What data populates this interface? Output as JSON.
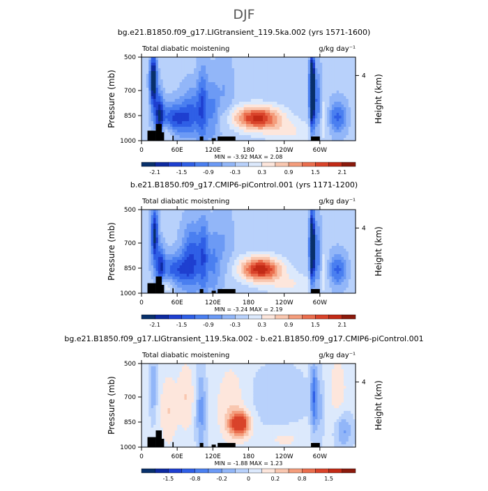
{
  "figure_title": "DJF",
  "chart_data": [
    {
      "type": "heatmap",
      "title": "bg.e21.B1850.f09_g17.LIGtransient_119.5ka.002 (yrs 1571-1600)",
      "left_string": "Total diabatic moistening",
      "units": "g/kg day⁻¹",
      "ylabel": "Pressure (mb)",
      "ylabel_right": "Height (km)",
      "yticks": [
        "500",
        "700",
        "850",
        "1000"
      ],
      "ytick_values": [
        500,
        700,
        850,
        1000
      ],
      "yticks_right": [
        "4"
      ],
      "xticks": [
        "0",
        "60E",
        "120E",
        "180",
        "120W",
        "60W"
      ],
      "xtick_values": [
        0,
        60,
        120,
        180,
        240,
        300
      ],
      "xlim": [
        0,
        360
      ],
      "ylim": [
        1000,
        500
      ],
      "stats": "MIN =    -3.92   MAX =     2.08",
      "min": -3.92,
      "max": 2.08,
      "colorbar_labels": [
        "-2.1",
        "-1.5",
        "-0.9",
        "-0.3",
        "0.3",
        "0.9",
        "1.5",
        "2.1"
      ],
      "levels": [
        -2.1,
        -1.8,
        -1.5,
        -1.2,
        -0.9,
        -0.6,
        -0.3,
        0,
        0.3,
        0.6,
        0.9,
        1.2,
        1.5,
        1.8,
        2.1
      ],
      "features": [
        {
          "lon": 20,
          "p": 640,
          "dlon": 4,
          "dp": 110,
          "value": -2.4
        },
        {
          "lon": 30,
          "p": 840,
          "dlon": 5,
          "dp": 90,
          "value": -1.6
        },
        {
          "lon": 55,
          "p": 870,
          "dlon": 18,
          "dp": 65,
          "value": -1.3
        },
        {
          "lon": 85,
          "p": 830,
          "dlon": 14,
          "dp": 110,
          "value": -0.9
        },
        {
          "lon": 103,
          "p": 780,
          "dlon": 6,
          "dp": 170,
          "value": -1.0
        },
        {
          "lon": 120,
          "p": 820,
          "dlon": 7,
          "dp": 140,
          "value": -0.7
        },
        {
          "lon": 140,
          "p": 700,
          "dlon": 10,
          "dp": 150,
          "value": -0.4
        },
        {
          "lon": 195,
          "p": 865,
          "dlon": 28,
          "dp": 50,
          "value": 2.08
        },
        {
          "lon": 287,
          "p": 700,
          "dlon": 3,
          "dp": 150,
          "value": -3.5
        },
        {
          "lon": 297,
          "p": 780,
          "dlon": 5,
          "dp": 140,
          "value": -1.0
        },
        {
          "lon": 305,
          "p": 830,
          "dlon": 5,
          "dp": 120,
          "value": 0.5
        },
        {
          "lon": 330,
          "p": 860,
          "dlon": 10,
          "dp": 70,
          "value": -1.1
        },
        {
          "lon": 250,
          "p": 950,
          "dlon": 30,
          "dp": 50,
          "value": 0.5
        },
        {
          "lon": 40,
          "p": 950,
          "dlon": 10,
          "dp": 40,
          "value": 0.6
        }
      ],
      "background_value": -0.2,
      "topography": [
        [
          10,
          940,
          24
        ],
        [
          24,
          900,
          34
        ],
        [
          30,
          950,
          38
        ],
        [
          52,
          970,
          54
        ],
        [
          98,
          975,
          104
        ],
        [
          118,
          985,
          125
        ],
        [
          128,
          975,
          158
        ],
        [
          285,
          975,
          300
        ]
      ]
    },
    {
      "type": "heatmap",
      "title": "b.e21.B1850.f09_g17.CMIP6-piControl.001 (yrs 1171-1200)",
      "left_string": "Total diabatic moistening",
      "units": "g/kg day⁻¹",
      "ylabel": "Pressure (mb)",
      "ylabel_right": "Height (km)",
      "yticks": [
        "500",
        "700",
        "850",
        "1000"
      ],
      "ytick_values": [
        500,
        700,
        850,
        1000
      ],
      "yticks_right": [
        "4"
      ],
      "xticks": [
        "0",
        "60E",
        "120E",
        "180",
        "120W",
        "60W"
      ],
      "xtick_values": [
        0,
        60,
        120,
        180,
        240,
        300
      ],
      "xlim": [
        0,
        360
      ],
      "ylim": [
        1000,
        500
      ],
      "stats": "MIN =    -3.24   MAX =     2.19",
      "min": -3.24,
      "max": 2.19,
      "colorbar_labels": [
        "-2.1",
        "-1.5",
        "-0.9",
        "-0.3",
        "0.3",
        "0.9",
        "1.5",
        "2.1"
      ],
      "levels": [
        -2.1,
        -1.8,
        -1.5,
        -1.2,
        -0.9,
        -0.6,
        -0.3,
        0,
        0.3,
        0.6,
        0.9,
        1.2,
        1.5,
        1.8,
        2.1
      ],
      "features": [
        {
          "lon": 22,
          "p": 650,
          "dlon": 4,
          "dp": 110,
          "value": -2.0
        },
        {
          "lon": 32,
          "p": 840,
          "dlon": 5,
          "dp": 90,
          "value": -1.3
        },
        {
          "lon": 58,
          "p": 860,
          "dlon": 18,
          "dp": 65,
          "value": -1.2
        },
        {
          "lon": 85,
          "p": 780,
          "dlon": 12,
          "dp": 140,
          "value": -1.2
        },
        {
          "lon": 105,
          "p": 780,
          "dlon": 6,
          "dp": 170,
          "value": -1.0
        },
        {
          "lon": 122,
          "p": 820,
          "dlon": 7,
          "dp": 140,
          "value": -0.7
        },
        {
          "lon": 140,
          "p": 700,
          "dlon": 10,
          "dp": 150,
          "value": -0.4
        },
        {
          "lon": 200,
          "p": 855,
          "dlon": 24,
          "dp": 50,
          "value": 2.19
        },
        {
          "lon": 287,
          "p": 720,
          "dlon": 3,
          "dp": 150,
          "value": -3.0
        },
        {
          "lon": 297,
          "p": 780,
          "dlon": 5,
          "dp": 140,
          "value": -1.0
        },
        {
          "lon": 305,
          "p": 830,
          "dlon": 5,
          "dp": 120,
          "value": 0.5
        },
        {
          "lon": 330,
          "p": 860,
          "dlon": 10,
          "dp": 70,
          "value": -1.1
        },
        {
          "lon": 250,
          "p": 950,
          "dlon": 30,
          "dp": 50,
          "value": 0.5
        },
        {
          "lon": 40,
          "p": 950,
          "dlon": 10,
          "dp": 40,
          "value": 0.6
        }
      ],
      "background_value": -0.2,
      "topography": [
        [
          10,
          940,
          24
        ],
        [
          24,
          900,
          34
        ],
        [
          30,
          950,
          38
        ],
        [
          52,
          970,
          54
        ],
        [
          98,
          975,
          104
        ],
        [
          118,
          985,
          125
        ],
        [
          128,
          975,
          158
        ],
        [
          285,
          975,
          300
        ]
      ]
    },
    {
      "type": "heatmap",
      "title": "bg.e21.B1850.f09_g17.LIGtransient_119.5ka.002 - b.e21.B1850.f09_g17.CMIP6-piControl.001",
      "left_string": "Total diabatic moistening",
      "units": "g/kg day⁻¹",
      "ylabel": "Pressure (mb)",
      "ylabel_right": "Height (km)",
      "yticks": [
        "500",
        "700",
        "850",
        "1000"
      ],
      "ytick_values": [
        500,
        700,
        850,
        1000
      ],
      "yticks_right": [
        "4"
      ],
      "xticks": [
        "0",
        "60E",
        "120E",
        "180",
        "120W",
        "60W"
      ],
      "xtick_values": [
        0,
        60,
        120,
        180,
        240,
        300
      ],
      "xlim": [
        0,
        360
      ],
      "ylim": [
        1000,
        500
      ],
      "stats": "MIN =    -1.88   MAX =     1.23",
      "min": -1.88,
      "max": 1.23,
      "colorbar_labels": [
        "-1.5",
        "-0.8",
        "-0.2",
        "0",
        "0.2",
        "0.8",
        "1.5"
      ],
      "levels": [
        -2,
        -1.5,
        -1,
        -0.8,
        -0.6,
        -0.4,
        -0.2,
        0,
        0.2,
        0.4,
        0.6,
        0.8,
        1,
        1.5,
        2
      ],
      "features": [
        {
          "lon": 20,
          "p": 640,
          "dlon": 4,
          "dp": 120,
          "value": -0.5
        },
        {
          "lon": 45,
          "p": 780,
          "dlon": 10,
          "dp": 150,
          "value": 0.35
        },
        {
          "lon": 75,
          "p": 700,
          "dlon": 10,
          "dp": 150,
          "value": 0.35
        },
        {
          "lon": 100,
          "p": 780,
          "dlon": 6,
          "dp": 170,
          "value": -0.55
        },
        {
          "lon": 150,
          "p": 750,
          "dlon": 18,
          "dp": 180,
          "value": 0.3
        },
        {
          "lon": 165,
          "p": 860,
          "dlon": 12,
          "dp": 50,
          "value": 1.23
        },
        {
          "lon": 230,
          "p": 700,
          "dlon": 30,
          "dp": 120,
          "value": -0.25
        },
        {
          "lon": 290,
          "p": 700,
          "dlon": 4,
          "dp": 150,
          "value": -0.8
        },
        {
          "lon": 300,
          "p": 760,
          "dlon": 5,
          "dp": 140,
          "value": -0.3
        },
        {
          "lon": 330,
          "p": 650,
          "dlon": 12,
          "dp": 150,
          "value": 0.25
        },
        {
          "lon": 340,
          "p": 900,
          "dlon": 10,
          "dp": 70,
          "value": -0.5
        },
        {
          "lon": 240,
          "p": 950,
          "dlon": 30,
          "dp": 50,
          "value": 0.2
        }
      ],
      "background_value": 0.05,
      "topography": [
        [
          10,
          940,
          24
        ],
        [
          24,
          900,
          34
        ],
        [
          30,
          950,
          38
        ],
        [
          52,
          970,
          54
        ],
        [
          98,
          975,
          104
        ],
        [
          118,
          985,
          125
        ],
        [
          128,
          975,
          158
        ],
        [
          285,
          975,
          300
        ]
      ]
    }
  ],
  "colors": {
    "colormap": [
      "#08306b",
      "#0d2aa0",
      "#1e3fd0",
      "#2f5fe6",
      "#4a7ff0",
      "#6c9af5",
      "#92b6f8",
      "#b8d1fb",
      "#dce9fc",
      "#fde6dc",
      "#f9c7b0",
      "#f49d7c",
      "#ea6e4e",
      "#d9432a",
      "#c22a16",
      "#8b1a0c"
    ],
    "topography": "#000000"
  }
}
